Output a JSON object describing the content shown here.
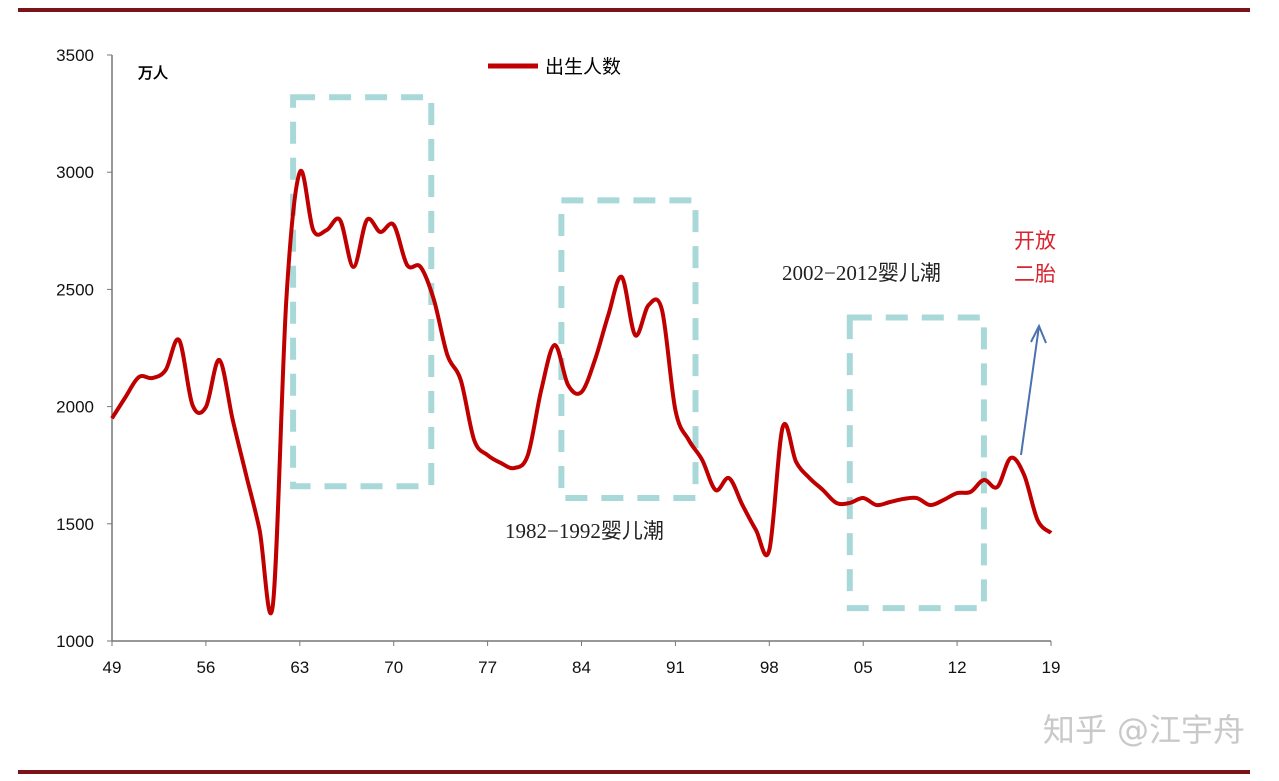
{
  "chart_data": {
    "type": "line",
    "title": "",
    "unit_label": "万人",
    "xlabel": "",
    "ylabel": "",
    "xlim": [
      1949,
      2019
    ],
    "ylim": [
      1000,
      3500
    ],
    "x_ticks": [
      1949,
      1956,
      1963,
      1970,
      1977,
      1984,
      1991,
      1998,
      2005,
      2012,
      2019
    ],
    "x_tick_labels": [
      "49",
      "56",
      "63",
      "70",
      "77",
      "84",
      "91",
      "98",
      "05",
      "12",
      "19"
    ],
    "y_ticks": [
      1000,
      1500,
      2000,
      2500,
      3000,
      3500
    ],
    "y_tick_labels": [
      "1000",
      "1500",
      "2000",
      "2500",
      "3000",
      "3500"
    ],
    "grid": false,
    "legend_position": "top-center",
    "series": [
      {
        "name": "出生人数",
        "color": "#c00000",
        "x": [
          1949,
          1950,
          1951,
          1952,
          1953,
          1954,
          1955,
          1956,
          1957,
          1958,
          1959,
          1960,
          1961,
          1962,
          1963,
          1964,
          1965,
          1966,
          1967,
          1968,
          1969,
          1970,
          1971,
          1972,
          1973,
          1974,
          1975,
          1976,
          1977,
          1978,
          1979,
          1980,
          1981,
          1982,
          1983,
          1984,
          1985,
          1986,
          1987,
          1988,
          1989,
          1990,
          1991,
          1992,
          1993,
          1994,
          1995,
          1996,
          1997,
          1998,
          1999,
          2000,
          2001,
          2002,
          2003,
          2004,
          2005,
          2006,
          2007,
          2008,
          2009,
          2010,
          2011,
          2012,
          2013,
          2014,
          2015,
          2016,
          2017,
          2018,
          2019
        ],
        "values": [
          1950,
          2040,
          2126,
          2122,
          2156,
          2284,
          2007,
          1998,
          2199,
          1943,
          1708,
          1474,
          1158,
          2460,
          3000,
          2753,
          2753,
          2796,
          2596,
          2796,
          2745,
          2775,
          2604,
          2596,
          2455,
          2220,
          2113,
          1857,
          1793,
          1759,
          1738,
          1793,
          2071,
          2263,
          2092,
          2062,
          2199,
          2391,
          2553,
          2305,
          2433,
          2412,
          1985,
          1857,
          1772,
          1644,
          1695,
          1580,
          1474,
          1388,
          1913,
          1764,
          1695,
          1644,
          1589,
          1589,
          1610,
          1580,
          1593,
          1606,
          1610,
          1580,
          1602,
          1631,
          1636,
          1687,
          1657,
          1781,
          1708,
          1516,
          1461
        ]
      }
    ],
    "annotations": [
      {
        "text": "1982−1992婴儿潮",
        "box_x": [
          1962.5,
          1972.8
        ],
        "box_y": [
          1660,
          3320
        ]
      },
      {
        "text": "2002−2012婴儿潮",
        "box_x": [
          1982.5,
          1992.5
        ],
        "box_y": [
          1610,
          2880
        ]
      },
      {
        "text": "",
        "box_x": [
          2004,
          2014
        ],
        "box_y": [
          1140,
          2380
        ]
      },
      {
        "text_lines": [
          "开放",
          "二胎"
        ],
        "color": "#d9232e",
        "arrow_color": "#4a72b0"
      }
    ],
    "box_color": "#a9d8d8"
  },
  "watermark": "知乎 @江宇舟"
}
